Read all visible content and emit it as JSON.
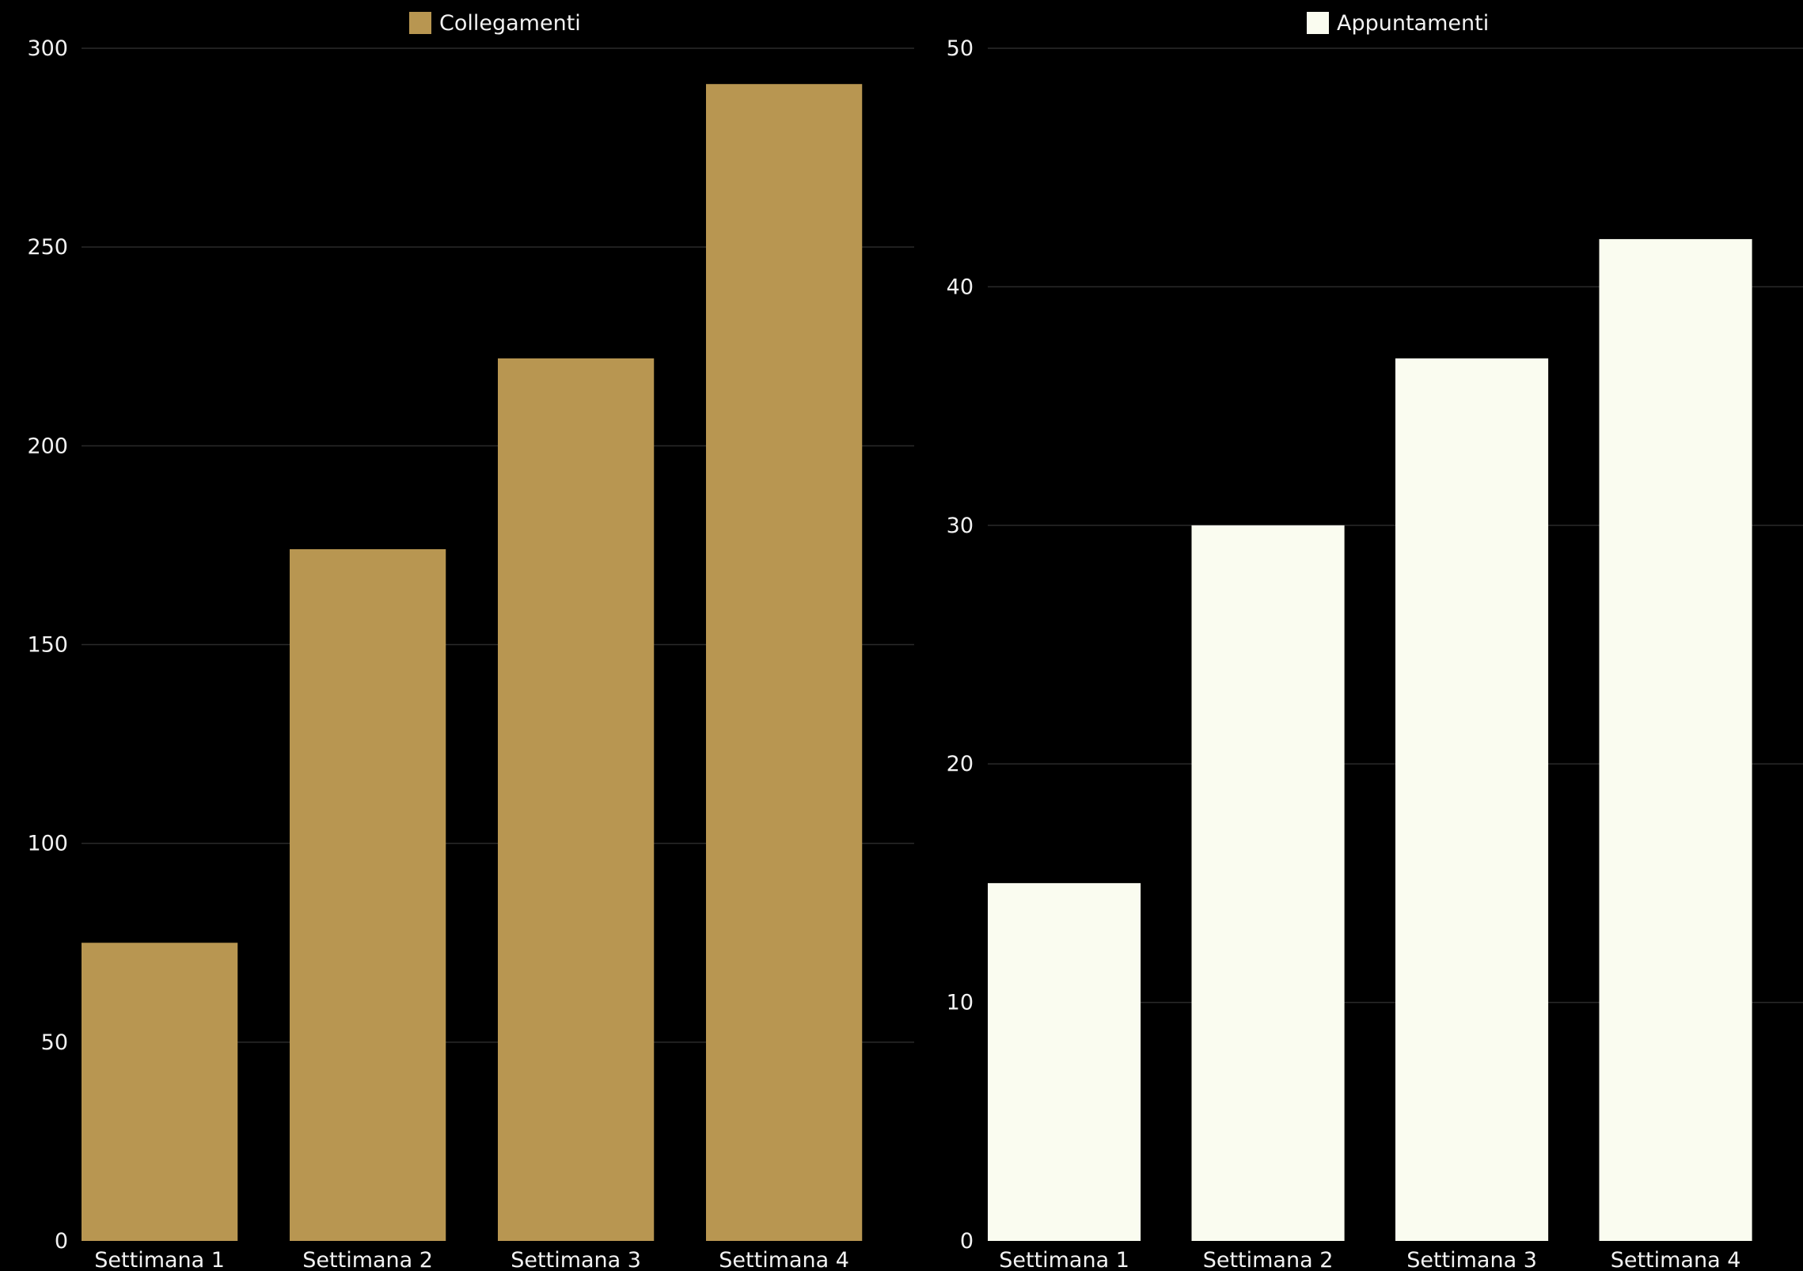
{
  "chart_data": [
    {
      "type": "bar",
      "categories": [
        "Settimana 1",
        "Settimana 2",
        "Settimana 3",
        "Settimana 4"
      ],
      "series": [
        {
          "name": "Collegamenti",
          "values": [
            75,
            174,
            222,
            291
          ],
          "color": "#b89651"
        }
      ],
      "ylim": [
        0,
        300
      ],
      "yticks": [
        0,
        50,
        100,
        150,
        200,
        250,
        300
      ],
      "grid": true,
      "legend": "top-center"
    },
    {
      "type": "bar",
      "categories": [
        "Settimana 1",
        "Settimana 2",
        "Settimana 3",
        "Settimana 4"
      ],
      "series": [
        {
          "name": "Appuntamenti",
          "values": [
            15,
            30,
            37,
            42
          ],
          "color": "#fafcf0"
        }
      ],
      "ylim": [
        0,
        50
      ],
      "yticks": [
        0,
        10,
        20,
        30,
        40,
        50
      ],
      "grid": true,
      "legend": "top-center"
    }
  ],
  "colors": {
    "background": "#000000",
    "grid": "#2a2a2a",
    "text": "#f2f2f2"
  }
}
